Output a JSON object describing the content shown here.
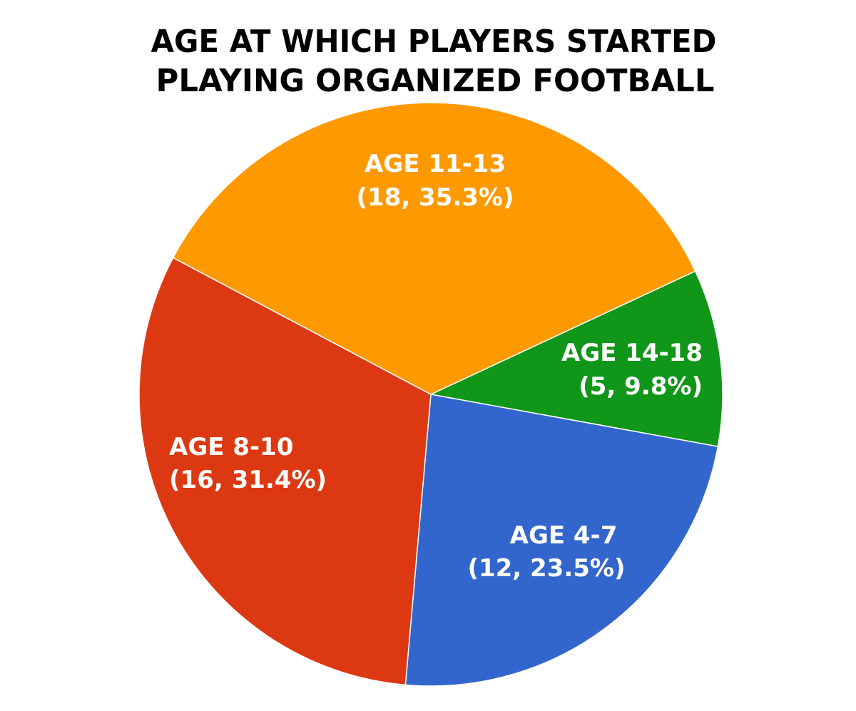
{
  "chart_data": {
    "type": "pie",
    "title": [
      "AGE AT WHICH PLAYERS STARTED",
      "PLAYING ORGANIZED FOOTBALL"
    ],
    "start_angle_deg": -25,
    "direction": "clockwise",
    "slices": [
      {
        "category": "AGE 14-18",
        "count": 5,
        "percent": 9.8,
        "label": "(5, 9.8%)",
        "color": "#109618"
      },
      {
        "category": "AGE 4-7",
        "count": 12,
        "percent": 23.5,
        "label": "(12, 23.5%)",
        "color": "#3366CC"
      },
      {
        "category": "AGE 8-10",
        "count": 16,
        "percent": 31.4,
        "label": "(16, 31.4%)",
        "color": "#DC3912"
      },
      {
        "category": "AGE 11-13",
        "count": 18,
        "percent": 35.3,
        "label": "(18, 35.3%)",
        "color": "#FF9900"
      }
    ],
    "legend": "none"
  }
}
